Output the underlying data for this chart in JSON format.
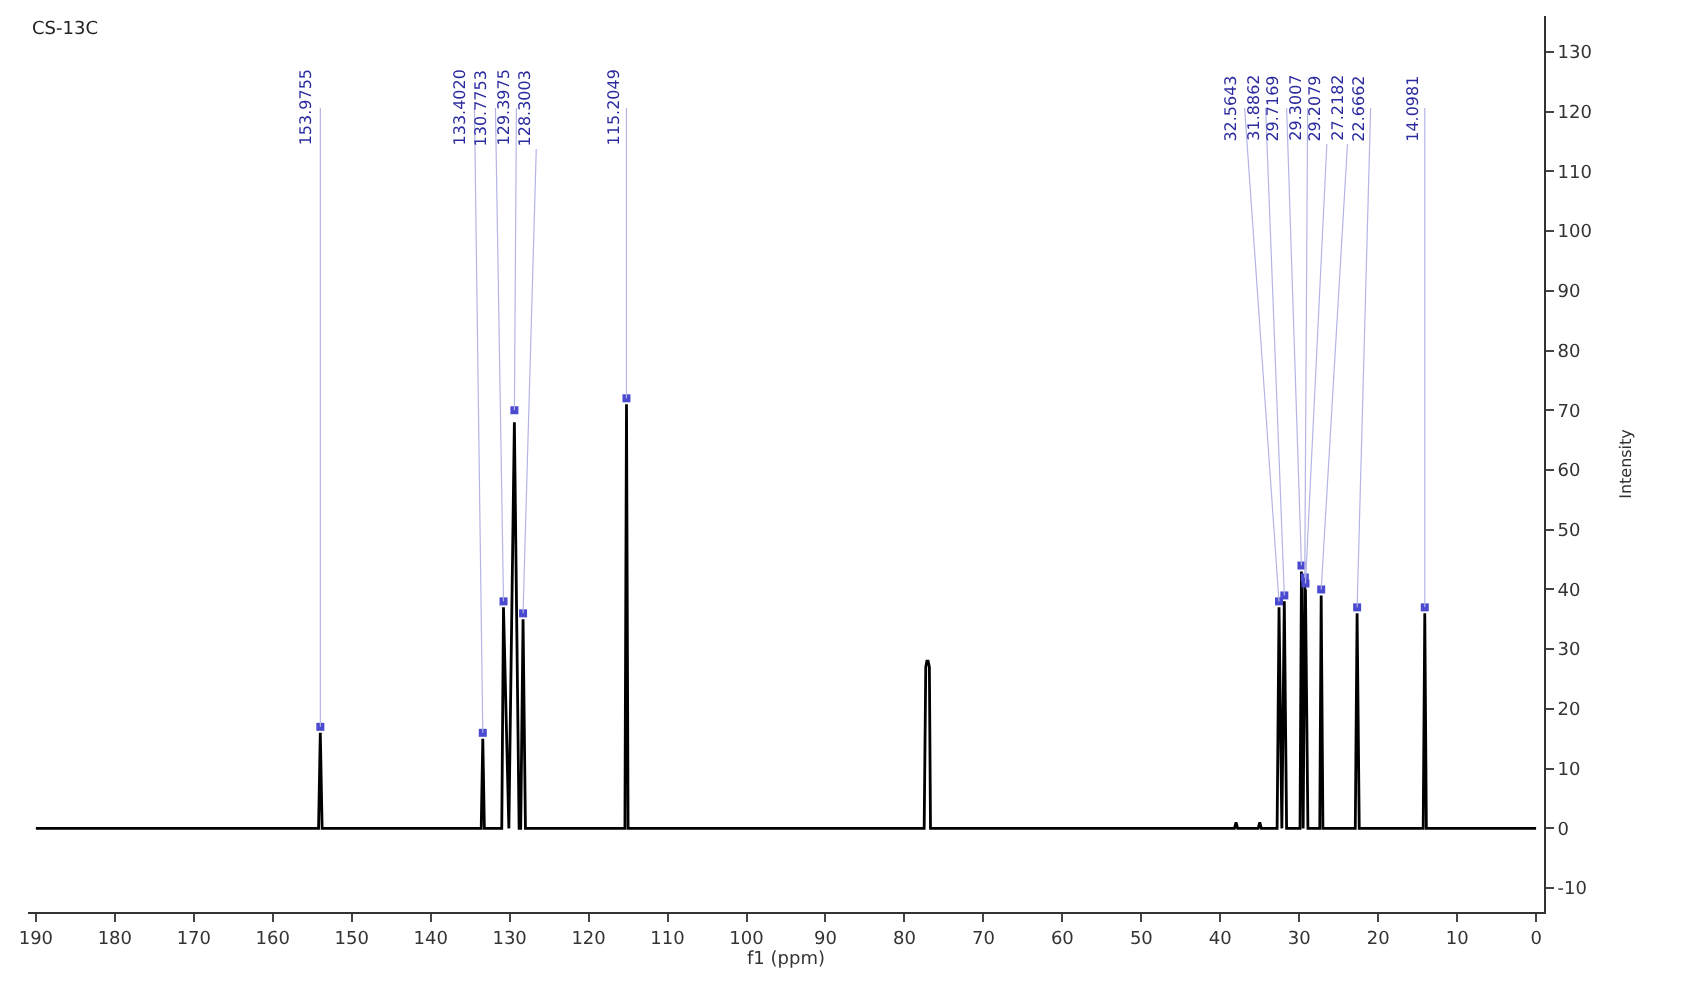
{
  "chart_data": {
    "type": "line",
    "title": "CS-13C",
    "xlabel": "f1 (ppm)",
    "ylabel": "Intensity",
    "x": [
      190,
      154.2,
      153.98,
      153.75,
      133.6,
      133.4,
      133.2,
      131.0,
      130.78,
      130.1,
      129.4,
      128.8,
      128.6,
      128.3,
      128.0,
      115.4,
      115.2,
      115.0,
      77.5,
      77.3,
      77.16,
      77.0,
      76.84,
      76.7,
      38.2,
      38.0,
      37.8,
      35.2,
      35.0,
      34.8,
      32.8,
      32.56,
      32.2,
      31.89,
      31.6,
      29.9,
      29.72,
      29.5,
      29.3,
      29.25,
      29.21,
      28.9,
      27.4,
      27.22,
      27.0,
      22.9,
      22.67,
      22.4,
      14.3,
      14.1,
      13.9,
      0
    ],
    "series": [
      {
        "color": "#000000",
        "values": [
          0,
          0,
          16,
          0,
          0,
          15,
          0,
          0,
          37,
          0,
          68,
          0,
          0,
          35,
          0,
          0,
          71,
          0,
          0,
          27,
          28,
          28,
          27,
          0,
          0,
          1,
          0,
          0,
          1,
          0,
          0,
          37,
          0,
          38,
          0,
          0,
          43,
          0,
          41,
          38,
          40,
          0,
          0,
          39,
          0,
          0,
          36,
          0,
          0,
          36,
          0,
          0
        ]
      },
      {
        "type": "scatter",
        "color": "#4a4ad0",
        "x": [
          153.9755,
          133.402,
          130.7753,
          129.3975,
          128.3003,
          115.2049,
          32.5643,
          31.8862,
          29.7169,
          29.3007,
          29.2079,
          27.2182,
          22.6662,
          14.0981
        ],
        "values": [
          17,
          16,
          38,
          70,
          36,
          72,
          38,
          39,
          44,
          42,
          41,
          40,
          37,
          37
        ]
      }
    ],
    "annotations": [
      {
        "text": "153.9755",
        "x": 153.9755,
        "y": 17
      },
      {
        "text": "133.4020",
        "x": 133.402,
        "y": 16
      },
      {
        "text": "130.7753",
        "x": 130.7753,
        "y": 38
      },
      {
        "text": "129.3975",
        "x": 129.3975,
        "y": 70
      },
      {
        "text": "128.3003",
        "x": 128.3003,
        "y": 36
      },
      {
        "text": "115.2049",
        "x": 115.2049,
        "y": 72
      },
      {
        "text": "32.5643",
        "x": 32.5643,
        "y": 38
      },
      {
        "text": "31.8862",
        "x": 31.8862,
        "y": 39
      },
      {
        "text": "29.7169",
        "x": 29.7169,
        "y": 44
      },
      {
        "text": "29.3007",
        "x": 29.3007,
        "y": 42
      },
      {
        "text": "29.2079",
        "x": 29.2079,
        "y": 41
      },
      {
        "text": "27.2182",
        "x": 27.2182,
        "y": 40
      },
      {
        "text": "22.6662",
        "x": 22.6662,
        "y": 37
      },
      {
        "text": "14.0981",
        "x": 14.0981,
        "y": 37
      }
    ],
    "xlim": [
      191,
      -1
    ],
    "xticks": [
      190,
      180,
      170,
      160,
      150,
      140,
      130,
      120,
      110,
      100,
      90,
      80,
      70,
      60,
      50,
      40,
      30,
      20,
      10,
      0
    ],
    "ylim": [
      -14,
      136
    ],
    "yticks": [
      -10,
      0,
      10,
      20,
      30,
      40,
      50,
      60,
      70,
      80,
      90,
      100,
      110,
      120,
      130
    ]
  }
}
